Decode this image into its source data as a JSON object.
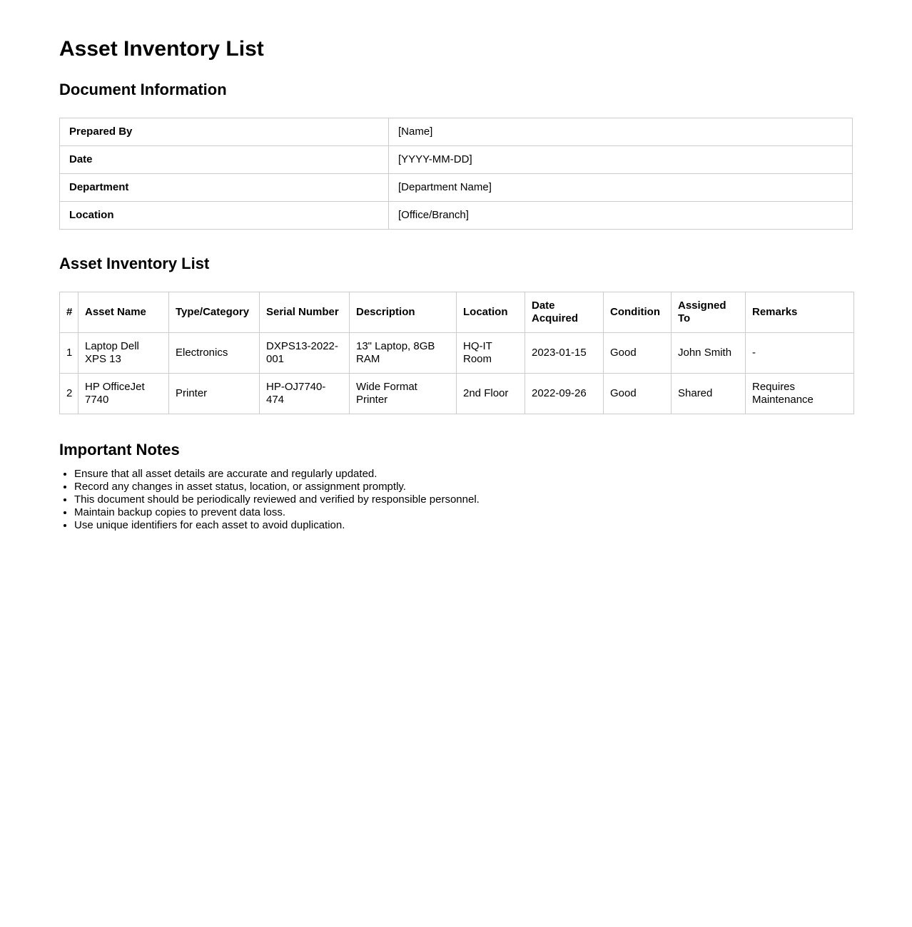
{
  "title": "Asset Inventory List",
  "document_information": {
    "heading": "Document Information",
    "rows": [
      {
        "label": "Prepared By",
        "value": "[Name]"
      },
      {
        "label": "Date",
        "value": "[YYYY-MM-DD]"
      },
      {
        "label": "Department",
        "value": "[Department Name]"
      },
      {
        "label": "Location",
        "value": "[Office/Branch]"
      }
    ]
  },
  "asset_inventory": {
    "heading": "Asset Inventory List",
    "columns": [
      "#",
      "Asset Name",
      "Type/Category",
      "Serial Number",
      "Description",
      "Location",
      "Date Acquired",
      "Condition",
      "Assigned To",
      "Remarks"
    ],
    "rows": [
      {
        "cells": [
          "1",
          "Laptop Dell XPS 13",
          "Electronics",
          "DXPS13-2022-001",
          "13\" Laptop, 8GB RAM",
          "HQ-IT Room",
          "2023-01-15",
          "Good",
          "John Smith",
          "-"
        ]
      },
      {
        "cells": [
          "2",
          "HP OfficeJet 7740",
          "Printer",
          "HP-OJ7740-474",
          "Wide Format Printer",
          "2nd Floor",
          "2022-09-26",
          "Good",
          "Shared",
          "Requires Maintenance"
        ]
      }
    ]
  },
  "important_notes": {
    "heading": "Important Notes",
    "items": [
      "Ensure that all asset details are accurate and regularly updated.",
      "Record any changes in asset status, location, or assignment promptly.",
      "This document should be periodically reviewed and verified by responsible personnel.",
      "Maintain backup copies to prevent data loss.",
      "Use unique identifiers for each asset to avoid duplication."
    ]
  },
  "colors": {
    "border": "#cccccc",
    "text": "#000000",
    "background": "#ffffff"
  }
}
